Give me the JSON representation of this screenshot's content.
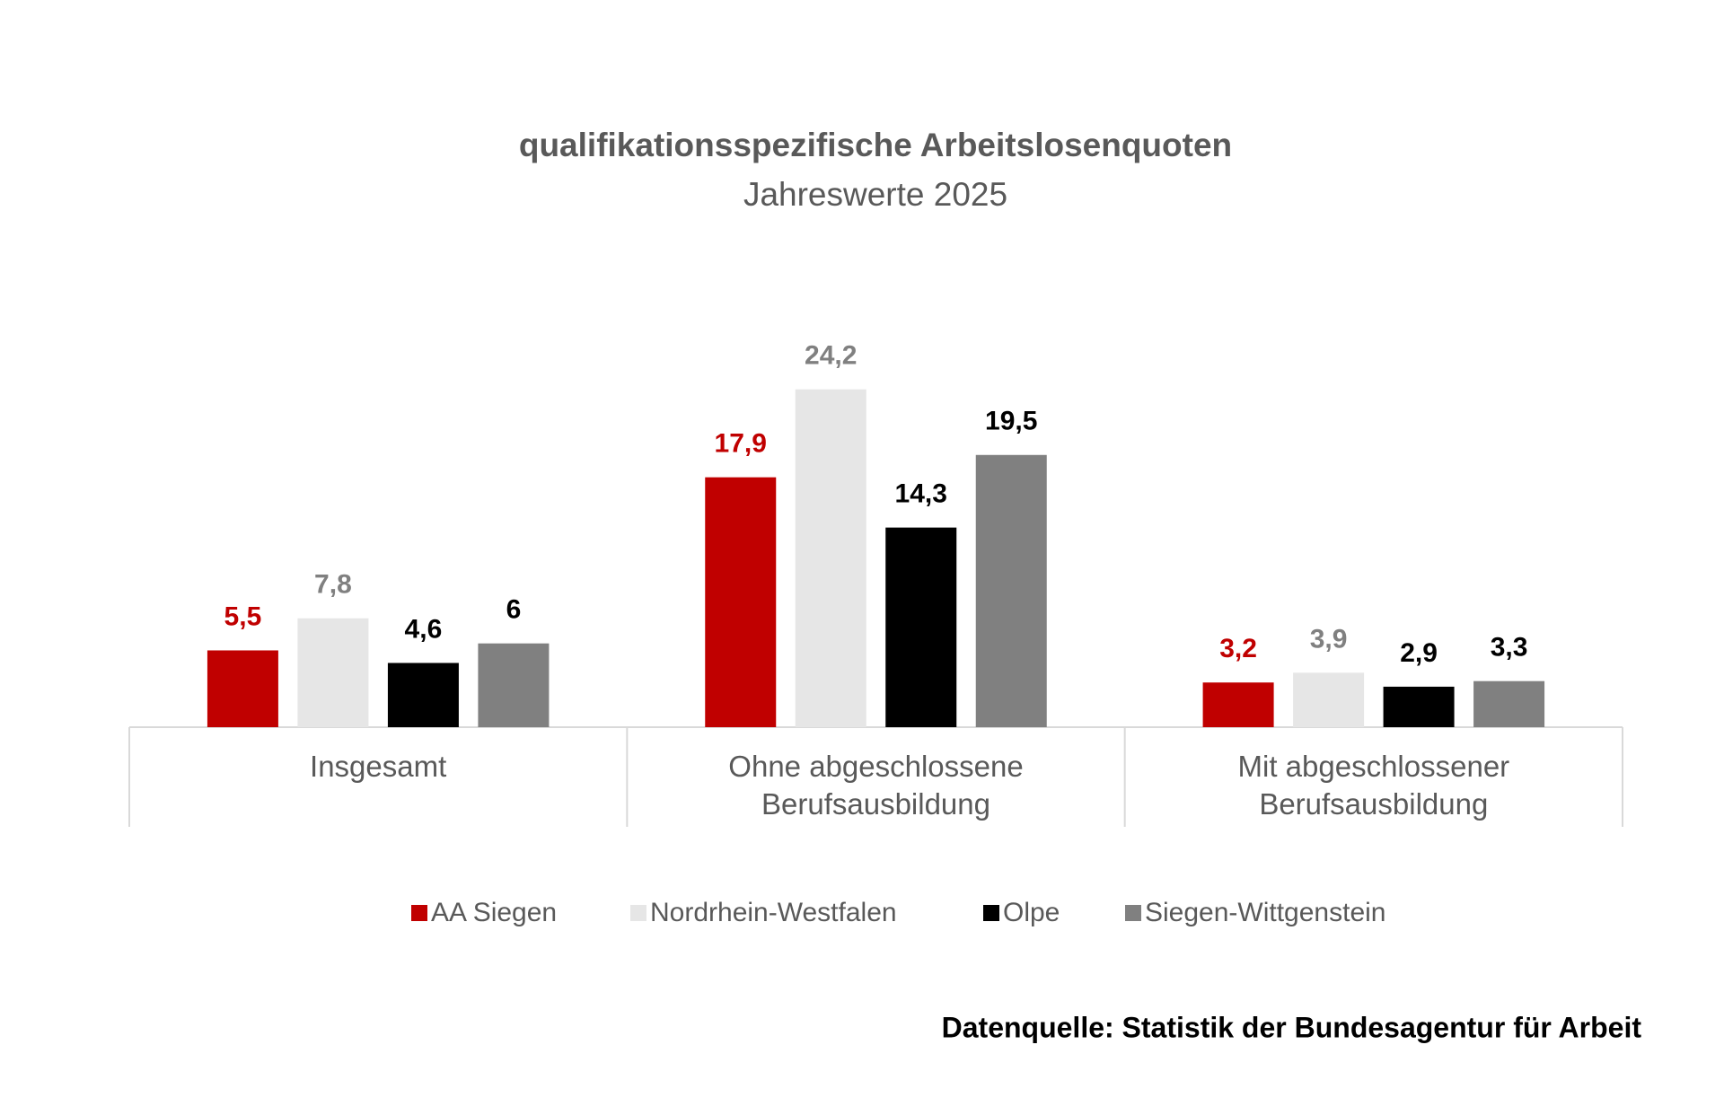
{
  "chart_data": {
    "type": "bar",
    "title": "qualifikationsspezifische Arbeitslosenquoten",
    "subtitle": "Jahreswerte 2025",
    "categories": [
      "Insgesamt",
      "Ohne abgeschlossene Berufsausbildung",
      "Mit abgeschlossener Berufsausbildung"
    ],
    "series": [
      {
        "name": "AA Siegen",
        "color": "#c00000",
        "label_color": "#c00000",
        "values": [
          5.5,
          17.9,
          3.2
        ],
        "value_labels": [
          "5,5",
          "17,9",
          "3,2"
        ]
      },
      {
        "name": "Nordrhein-Westfalen",
        "color": "#e6e6e6",
        "label_color": "#808080",
        "values": [
          7.8,
          24.2,
          3.9
        ],
        "value_labels": [
          "7,8",
          "24,2",
          "3,9"
        ]
      },
      {
        "name": "Olpe",
        "color": "#000000",
        "label_color": "#000000",
        "values": [
          4.6,
          14.3,
          2.9
        ],
        "value_labels": [
          "4,6",
          "14,3",
          "2,9"
        ]
      },
      {
        "name": "Siegen-Wittgenstein",
        "color": "#808080",
        "label_color": "#000000",
        "values": [
          6,
          19.5,
          3.3
        ],
        "value_labels": [
          "6",
          "19,5",
          "3,3"
        ]
      }
    ],
    "source": "Datenquelle: Statistik der Bundesagentur für Arbeit",
    "legend": "bottom"
  }
}
